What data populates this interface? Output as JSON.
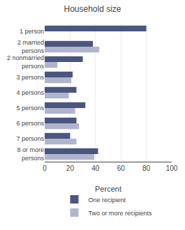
{
  "chart_data": {
    "type": "bar",
    "orientation": "horizontal",
    "title": "Household size",
    "xlabel": "Percent",
    "categories": [
      "1 person",
      "2 married\npersons",
      "2 nonmarried\npersons",
      "3 persons",
      "4 persons",
      "5 persons",
      "6 persons",
      "7 persons",
      "8 or more\npersons"
    ],
    "series": [
      {
        "name": "One recipient",
        "color": "#4a5580",
        "values": [
          80,
          38,
          30,
          22,
          25,
          32,
          25,
          20,
          42
        ]
      },
      {
        "name": "Two or more recipients",
        "color": "#b0b5cc",
        "values": [
          0,
          43,
          10,
          21,
          19,
          24,
          27,
          25,
          39
        ]
      }
    ],
    "xlim": [
      0,
      100
    ],
    "xticks": [
      0,
      20,
      40,
      60,
      80,
      100
    ],
    "grid": true,
    "legend": "bottom"
  }
}
